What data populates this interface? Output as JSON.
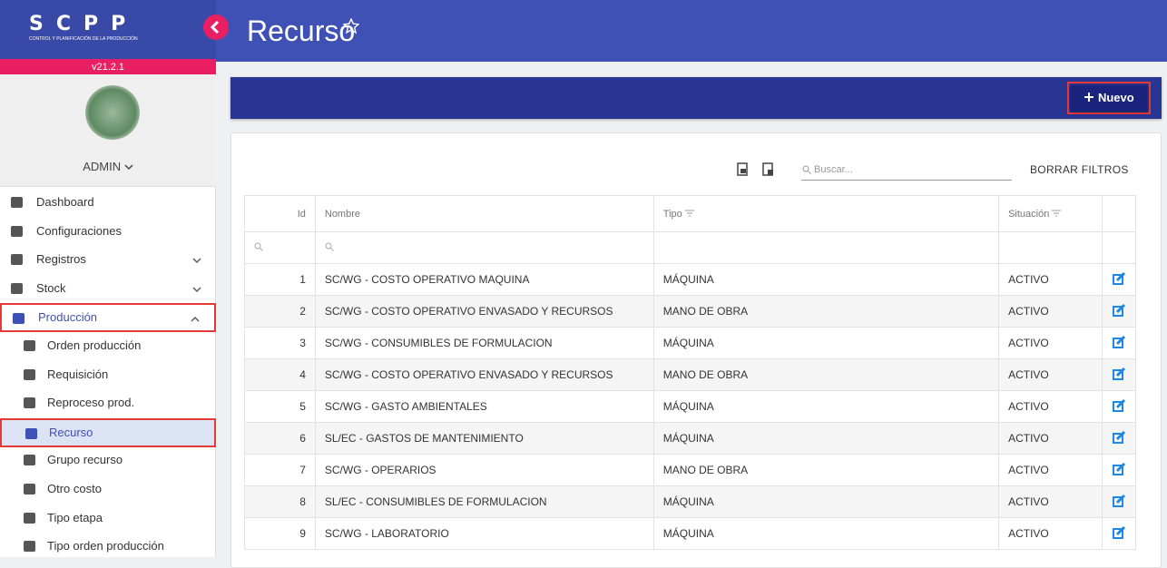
{
  "sidebar": {
    "logo": "SCPP",
    "logo_subtitle": "CONTROL Y PLANIFICACIÓN DE LA PRODUCCIÓN",
    "version": "v21.2.1",
    "user": "ADMIN",
    "menu": [
      {
        "label": "Dashboard"
      },
      {
        "label": "Configuraciones"
      },
      {
        "label": "Registros"
      },
      {
        "label": "Stock"
      },
      {
        "label": "Producción"
      },
      {
        "label": "Orden producción"
      },
      {
        "label": "Requisición"
      },
      {
        "label": "Reproceso prod."
      },
      {
        "label": "Recurso"
      },
      {
        "label": "Grupo recurso"
      },
      {
        "label": "Otro costo"
      },
      {
        "label": "Tipo etapa"
      },
      {
        "label": "Tipo orden producción"
      }
    ]
  },
  "header": {
    "title": "Recurso"
  },
  "toolbar": {
    "new_button": "Nuevo"
  },
  "table": {
    "search_placeholder": "Buscar...",
    "clear_filters": "BORRAR FILTROS",
    "columns": [
      "Id",
      "Nombre",
      "Tipo",
      "Situación"
    ],
    "rows": [
      [
        "1",
        "SC/WG - COSTO OPERATIVO MAQUINA",
        "MÁQUINA",
        "ACTIVO"
      ],
      [
        "2",
        "SC/WG - COSTO OPERATIVO ENVASADO Y RECURSOS",
        "MANO DE OBRA",
        "ACTIVO"
      ],
      [
        "3",
        "SC/WG - CONSUMIBLES DE FORMULACION",
        "MÁQUINA",
        "ACTIVO"
      ],
      [
        "4",
        "SC/WG - COSTO OPERATIVO ENVASADO Y RECURSOS",
        "MANO DE OBRA",
        "ACTIVO"
      ],
      [
        "5",
        "SC/WG - GASTO AMBIENTALES",
        "MÁQUINA",
        "ACTIVO"
      ],
      [
        "6",
        "SL/EC - GASTOS DE MANTENIMIENTO",
        "MÁQUINA",
        "ACTIVO"
      ],
      [
        "7",
        "SC/WG - OPERARIOS",
        "MANO DE OBRA",
        "ACTIVO"
      ],
      [
        "8",
        "SL/EC - CONSUMIBLES DE FORMULACION",
        "MÁQUINA",
        "ACTIVO"
      ],
      [
        "9",
        "SC/WG - LABORATORIO",
        "MÁQUINA",
        "ACTIVO"
      ]
    ]
  }
}
